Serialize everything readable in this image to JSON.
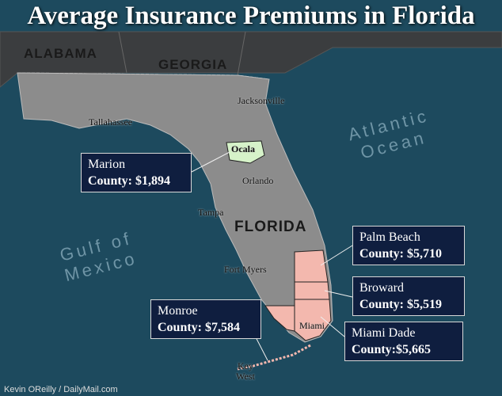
{
  "title": "Average Insurance Premiums in Florida",
  "states": [
    "ALABAMA",
    "GEORGIA",
    "FLORIDA"
  ],
  "cities": [
    "Jacksonville",
    "Tallahassee",
    "Ocala",
    "Orlando",
    "Tampa",
    "Fort Myers",
    "Miami",
    "Key West"
  ],
  "oceans": [
    "Atlantic Ocean",
    "Gulf of Mexico"
  ],
  "callouts": [
    {
      "name": "Marion",
      "premium": "County: $1,894"
    },
    {
      "name": "Palm Beach",
      "premium": "County: $5,710"
    },
    {
      "name": "Broward",
      "premium": "County: $5,519"
    },
    {
      "name": "Monroe",
      "premium": "County: $7,584"
    },
    {
      "name": "Miami Dade",
      "premium": "County:$5,665"
    }
  ],
  "credit": "Kevin OReilly / DailyMail.com"
}
